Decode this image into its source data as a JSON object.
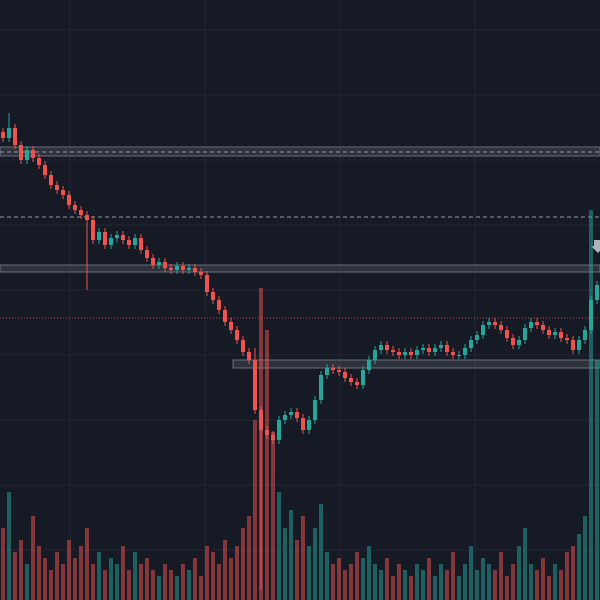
{
  "chart_data": {
    "type": "candlestick",
    "ylim": [
      0,
      600
    ],
    "up_color": "#26a69a",
    "down_color": "#ef5350",
    "open": [
      468,
      462,
      472,
      455,
      440,
      450,
      442,
      435,
      425,
      415,
      410,
      405,
      395,
      390,
      385,
      380,
      360,
      368,
      355,
      362,
      365,
      360,
      355,
      362,
      350,
      342,
      335,
      338,
      332,
      330,
      334,
      330,
      332,
      328,
      325,
      308,
      300,
      290,
      278,
      270,
      260,
      248,
      240,
      190,
      170,
      165,
      160,
      180,
      185,
      188,
      182,
      170,
      180,
      200,
      225,
      232,
      230,
      228,
      222,
      218,
      215,
      230,
      240,
      250,
      255,
      250,
      248,
      245,
      248,
      245,
      250,
      252,
      248,
      252,
      255,
      248,
      245,
      245,
      252,
      260,
      265,
      275,
      278,
      275,
      270,
      262,
      255,
      260,
      272,
      278,
      275,
      270,
      265,
      268,
      262,
      260,
      250,
      260,
      270,
      300
    ],
    "high": [
      472,
      487,
      476,
      459,
      454,
      454,
      446,
      439,
      429,
      419,
      414,
      409,
      399,
      394,
      389,
      384,
      372,
      372,
      366,
      369,
      369,
      364,
      366,
      366,
      354,
      346,
      342,
      342,
      336,
      338,
      338,
      336,
      336,
      332,
      329,
      312,
      304,
      294,
      282,
      274,
      264,
      252,
      252,
      194,
      174,
      169,
      184,
      189,
      192,
      192,
      186,
      184,
      204,
      229,
      236,
      236,
      234,
      232,
      226,
      222,
      234,
      244,
      254,
      259,
      259,
      254,
      252,
      252,
      252,
      254,
      256,
      256,
      256,
      259,
      259,
      252,
      249,
      256,
      264,
      269,
      279,
      282,
      282,
      279,
      274,
      266,
      264,
      276,
      282,
      282,
      279,
      274,
      272,
      272,
      266,
      264,
      264,
      274,
      304,
      319
    ],
    "low": [
      458,
      458,
      451,
      436,
      436,
      438,
      431,
      421,
      411,
      406,
      401,
      391,
      386,
      381,
      310,
      356,
      356,
      351,
      351,
      358,
      356,
      351,
      351,
      346,
      338,
      331,
      331,
      328,
      326,
      326,
      326,
      326,
      324,
      321,
      304,
      296,
      286,
      274,
      266,
      256,
      244,
      236,
      186,
      10,
      161,
      156,
      156,
      176,
      181,
      178,
      166,
      166,
      176,
      196,
      221,
      226,
      224,
      218,
      214,
      211,
      211,
      226,
      236,
      246,
      246,
      244,
      241,
      241,
      241,
      241,
      246,
      244,
      244,
      248,
      244,
      241,
      241,
      241,
      248,
      256,
      261,
      271,
      271,
      266,
      258,
      251,
      251,
      256,
      268,
      271,
      266,
      261,
      261,
      258,
      256,
      246,
      246,
      256,
      266,
      296
    ],
    "close": [
      462,
      472,
      455,
      440,
      450,
      442,
      435,
      425,
      415,
      410,
      405,
      395,
      390,
      385,
      380,
      360,
      368,
      355,
      362,
      365,
      360,
      355,
      362,
      350,
      342,
      335,
      338,
      332,
      330,
      334,
      330,
      332,
      328,
      325,
      308,
      300,
      290,
      278,
      270,
      260,
      248,
      240,
      190,
      170,
      165,
      160,
      180,
      185,
      188,
      182,
      170,
      180,
      200,
      225,
      232,
      230,
      228,
      222,
      218,
      215,
      230,
      240,
      250,
      255,
      250,
      248,
      245,
      248,
      245,
      250,
      252,
      248,
      252,
      255,
      248,
      245,
      245,
      252,
      260,
      265,
      275,
      278,
      275,
      270,
      262,
      255,
      260,
      272,
      278,
      275,
      270,
      265,
      268,
      262,
      260,
      250,
      260,
      270,
      300,
      315
    ],
    "volume_lim": [
      0,
      100
    ],
    "volume": [
      12,
      18,
      8,
      10,
      6,
      14,
      9,
      7,
      5,
      8,
      6,
      10,
      7,
      9,
      12,
      6,
      8,
      5,
      7,
      6,
      9,
      5,
      8,
      6,
      7,
      5,
      4,
      6,
      5,
      4,
      6,
      5,
      7,
      4,
      9,
      8,
      6,
      10,
      7,
      9,
      12,
      14,
      30,
      52,
      45,
      28,
      18,
      12,
      15,
      10,
      14,
      9,
      12,
      16,
      8,
      6,
      7,
      5,
      6,
      8,
      7,
      9,
      6,
      5,
      7,
      4,
      6,
      5,
      4,
      6,
      5,
      7,
      4,
      6,
      5,
      8,
      4,
      6,
      9,
      5,
      7,
      6,
      5,
      8,
      4,
      6,
      9,
      12,
      6,
      5,
      7,
      4,
      6,
      5,
      8,
      9,
      11,
      14,
      65,
      40
    ],
    "zones": [
      {
        "low": 444,
        "high": 453,
        "start_index": 0
      },
      {
        "low": 328,
        "high": 335,
        "start_index": 0
      },
      {
        "low": 232,
        "high": 240,
        "start_index": 39
      }
    ],
    "dashed_lines": [
      448,
      383
    ],
    "dotted_line": 282,
    "dotted_color": "#c2414f"
  }
}
